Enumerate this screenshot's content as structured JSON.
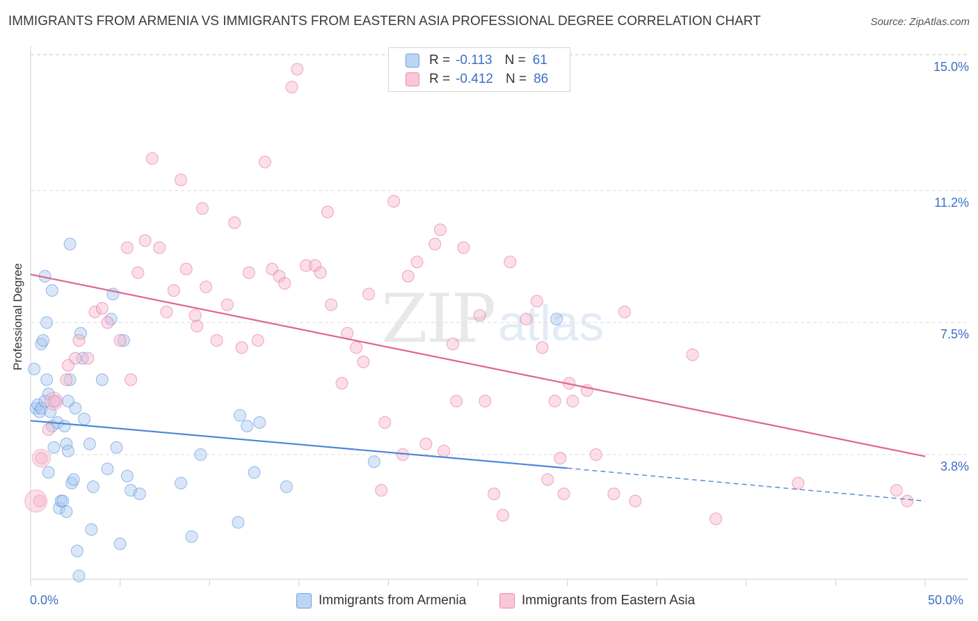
{
  "title": "IMMIGRANTS FROM ARMENIA VS IMMIGRANTS FROM EASTERN ASIA PROFESSIONAL DEGREE CORRELATION CHART",
  "source": "Source: ZipAtlas.com",
  "watermark": {
    "zip": "ZIP",
    "atlas": "atlas"
  },
  "legend": {
    "rows": [
      {
        "r_label": "R =",
        "r_value": "-0.113",
        "n_label": "N =",
        "n_value": "61",
        "color": "#a8c8f0"
      },
      {
        "r_label": "R =",
        "r_value": "-0.412",
        "n_label": "N =",
        "n_value": "86",
        "color": "#f7b6cb"
      }
    ]
  },
  "bottom_legend": [
    {
      "label": "Immigrants from Armenia",
      "color": "#a8c8f0"
    },
    {
      "label": "Immigrants from Eastern Asia",
      "color": "#f7b6cb"
    }
  ],
  "chart_data": {
    "type": "scatter",
    "title": "IMMIGRANTS FROM ARMENIA VS IMMIGRANTS FROM EASTERN ASIA PROFESSIONAL DEGREE CORRELATION CHART",
    "xlabel": "",
    "ylabel": "Professional Degree",
    "xlim": [
      0,
      50
    ],
    "ylim": [
      0,
      15.4
    ],
    "x_tick_labels": [
      "0.0%",
      "50.0%"
    ],
    "y_ticks": [
      3.8,
      7.5,
      11.2,
      15.0
    ],
    "y_tick_labels": [
      "3.8%",
      "7.5%",
      "11.2%",
      "15.0%"
    ],
    "grid": true,
    "series": [
      {
        "name": "Immigrants from Armenia",
        "color": "#4a86d8",
        "fill": "#a8c8f0",
        "trend": {
          "x0": 0,
          "y0": 4.75,
          "x1": 30,
          "y1": 3.42,
          "dash_to_x": 50,
          "dash_to_y": 2.5
        },
        "points": [
          [
            0.2,
            6.2
          ],
          [
            0.3,
            5.1
          ],
          [
            0.4,
            5.2
          ],
          [
            0.5,
            5.0
          ],
          [
            0.6,
            5.1
          ],
          [
            0.6,
            6.9
          ],
          [
            0.7,
            7.0
          ],
          [
            0.8,
            5.3
          ],
          [
            0.9,
            5.9
          ],
          [
            1.0,
            5.5
          ],
          [
            1.0,
            3.3
          ],
          [
            1.1,
            5.0
          ],
          [
            1.2,
            4.6
          ],
          [
            1.3,
            4.0
          ],
          [
            1.4,
            5.3
          ],
          [
            1.5,
            4.7
          ],
          [
            1.6,
            2.3
          ],
          [
            1.7,
            2.5
          ],
          [
            1.8,
            2.5
          ],
          [
            1.9,
            4.6
          ],
          [
            2.0,
            2.2
          ],
          [
            2.0,
            4.1
          ],
          [
            2.1,
            3.9
          ],
          [
            2.2,
            5.9
          ],
          [
            2.2,
            9.7
          ],
          [
            2.3,
            3.0
          ],
          [
            2.4,
            3.1
          ],
          [
            2.5,
            5.1
          ],
          [
            2.6,
            1.1
          ],
          [
            2.7,
            0.4
          ],
          [
            2.8,
            7.2
          ],
          [
            2.9,
            6.5
          ],
          [
            3.0,
            4.8
          ],
          [
            3.3,
            4.1
          ],
          [
            3.4,
            1.7
          ],
          [
            3.5,
            2.9
          ],
          [
            4.0,
            5.9
          ],
          [
            4.3,
            3.4
          ],
          [
            4.5,
            7.6
          ],
          [
            4.6,
            8.3
          ],
          [
            4.8,
            4.0
          ],
          [
            5.0,
            1.3
          ],
          [
            5.2,
            7.0
          ],
          [
            5.4,
            3.2
          ],
          [
            5.6,
            2.8
          ],
          [
            0.8,
            8.8
          ],
          [
            1.2,
            8.4
          ],
          [
            0.9,
            7.5
          ],
          [
            6.1,
            2.7
          ],
          [
            8.4,
            3.0
          ],
          [
            9.0,
            1.5
          ],
          [
            9.5,
            3.8
          ],
          [
            11.6,
            1.9
          ],
          [
            11.7,
            4.9
          ],
          [
            12.1,
            4.6
          ],
          [
            12.5,
            3.3
          ],
          [
            12.8,
            4.7
          ],
          [
            14.3,
            2.9
          ],
          [
            19.2,
            3.6
          ],
          [
            29.4,
            7.6
          ],
          [
            2.1,
            5.3
          ]
        ],
        "big_points": []
      },
      {
        "name": "Immigrants from Eastern Asia",
        "color": "#e0648f",
        "fill": "#f7b6cb",
        "trend": {
          "x0": 0,
          "y0": 8.85,
          "x1": 50,
          "y1": 3.75
        },
        "points": [
          [
            1.0,
            4.5
          ],
          [
            1.3,
            5.3
          ],
          [
            2.0,
            5.9
          ],
          [
            2.1,
            6.3
          ],
          [
            2.5,
            6.5
          ],
          [
            2.7,
            7.0
          ],
          [
            3.2,
            6.5
          ],
          [
            3.6,
            7.8
          ],
          [
            4.0,
            7.9
          ],
          [
            4.3,
            7.5
          ],
          [
            5.0,
            7.0
          ],
          [
            5.4,
            9.6
          ],
          [
            5.6,
            5.9
          ],
          [
            6.0,
            8.9
          ],
          [
            6.4,
            9.8
          ],
          [
            6.8,
            12.1
          ],
          [
            7.2,
            9.6
          ],
          [
            7.6,
            7.8
          ],
          [
            8.0,
            8.4
          ],
          [
            8.4,
            11.5
          ],
          [
            8.7,
            9.0
          ],
          [
            9.2,
            7.7
          ],
          [
            9.6,
            10.7
          ],
          [
            9.8,
            8.5
          ],
          [
            9.3,
            7.4
          ],
          [
            10.4,
            7.0
          ],
          [
            11.0,
            8.0
          ],
          [
            11.4,
            10.3
          ],
          [
            11.8,
            6.8
          ],
          [
            12.2,
            8.9
          ],
          [
            12.7,
            7.0
          ],
          [
            13.1,
            12.0
          ],
          [
            13.5,
            9.0
          ],
          [
            13.9,
            8.8
          ],
          [
            14.2,
            8.6
          ],
          [
            14.6,
            14.1
          ],
          [
            14.9,
            14.6
          ],
          [
            15.4,
            9.1
          ],
          [
            15.9,
            9.1
          ],
          [
            16.2,
            8.9
          ],
          [
            16.6,
            10.6
          ],
          [
            16.8,
            8.0
          ],
          [
            17.4,
            5.8
          ],
          [
            17.7,
            7.2
          ],
          [
            18.2,
            6.8
          ],
          [
            18.6,
            6.4
          ],
          [
            18.9,
            8.3
          ],
          [
            19.6,
            2.8
          ],
          [
            19.8,
            4.7
          ],
          [
            20.3,
            10.9
          ],
          [
            20.8,
            3.8
          ],
          [
            21.1,
            8.8
          ],
          [
            21.6,
            9.2
          ],
          [
            22.1,
            4.1
          ],
          [
            22.6,
            9.7
          ],
          [
            22.9,
            10.1
          ],
          [
            23.1,
            3.9
          ],
          [
            23.6,
            6.9
          ],
          [
            23.8,
            5.3
          ],
          [
            24.2,
            9.6
          ],
          [
            25.1,
            7.7
          ],
          [
            25.4,
            5.3
          ],
          [
            25.9,
            2.7
          ],
          [
            26.4,
            2.1
          ],
          [
            26.8,
            9.2
          ],
          [
            27.7,
            7.6
          ],
          [
            28.3,
            8.1
          ],
          [
            28.6,
            6.8
          ],
          [
            28.9,
            3.1
          ],
          [
            29.3,
            5.3
          ],
          [
            29.6,
            3.7
          ],
          [
            29.8,
            2.7
          ],
          [
            30.1,
            5.8
          ],
          [
            30.3,
            5.3
          ],
          [
            31.1,
            5.6
          ],
          [
            31.6,
            3.8
          ],
          [
            32.6,
            2.7
          ],
          [
            33.2,
            7.8
          ],
          [
            33.8,
            2.5
          ],
          [
            38.3,
            2.0
          ],
          [
            37.0,
            6.6
          ],
          [
            42.9,
            3.0
          ],
          [
            48.4,
            2.8
          ],
          [
            49.0,
            2.5
          ],
          [
            0.5,
            2.5
          ],
          [
            0.6,
            3.7
          ]
        ],
        "big_points": [
          [
            0.3,
            2.5
          ],
          [
            0.6,
            3.7
          ],
          [
            1.3,
            5.3
          ]
        ]
      }
    ]
  }
}
